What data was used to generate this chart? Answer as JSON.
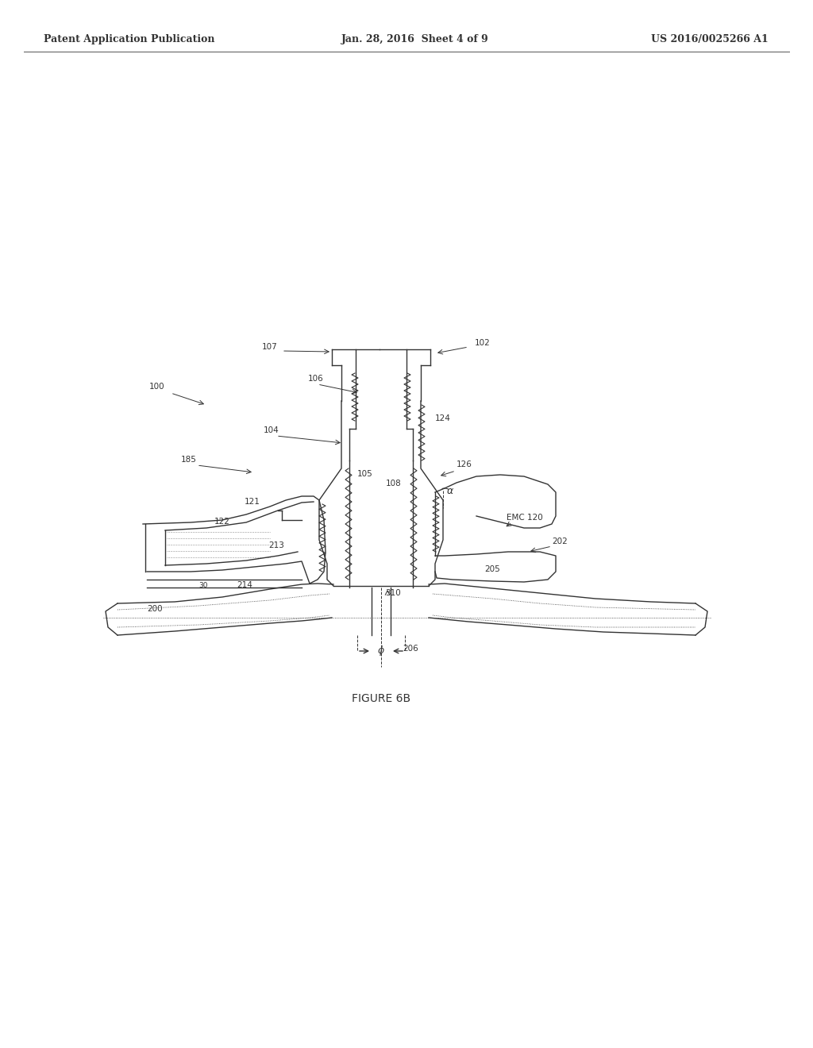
{
  "title": "FIGURE 6B",
  "header_left": "Patent Application Publication",
  "header_center": "Jan. 28, 2016  Sheet 4 of 9",
  "header_right": "US 2016/0025266 A1",
  "bg_color": "#ffffff",
  "line_color": "#333333",
  "fig_label": "FIGURE 6B"
}
